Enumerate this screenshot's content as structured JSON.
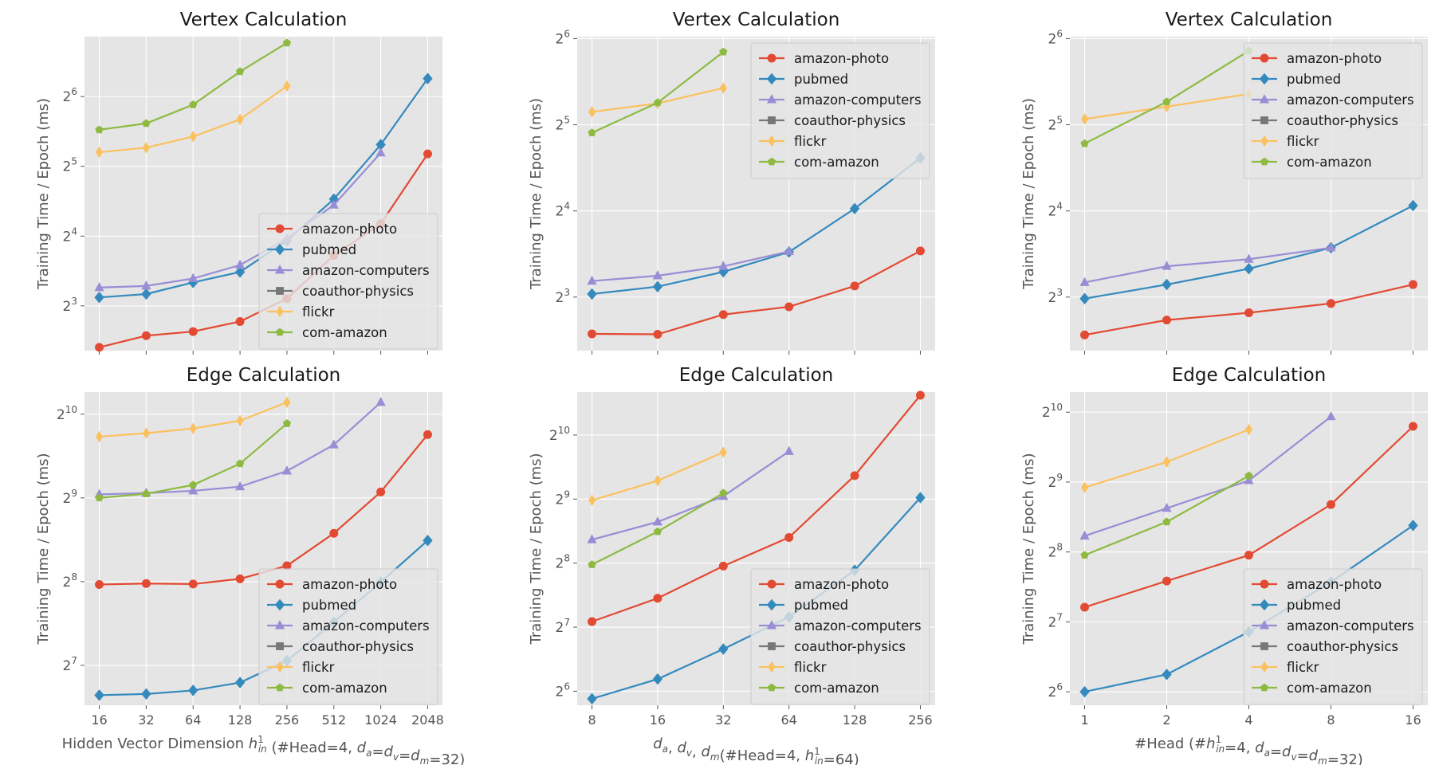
{
  "colors": {
    "amazon-photo": "#E24A33",
    "pubmed": "#348ABD",
    "amazon-computers": "#988ED5",
    "coauthor-physics": "#777777",
    "flickr": "#FBC15E",
    "com-amazon": "#8EBA42"
  },
  "chart_data": [
    {
      "type": "line",
      "title": "Vertex Calculation",
      "xlabel": "",
      "ylabel": "Training Time / Epoch (ms)",
      "x": [
        16,
        32,
        64,
        128,
        256,
        512,
        1024,
        2048
      ],
      "x_tick_labels": [],
      "x_scale": "log2",
      "y_scale": "log2",
      "y_ticks": [
        "2^3",
        "2^4",
        "2^5",
        "2^6"
      ],
      "ylim": [
        5.13,
        116
      ],
      "grid": true,
      "legend_position": "lower-right",
      "series": [
        {
          "name": "amazon-photo",
          "marker": "circle",
          "values": [
            5.3,
            5.95,
            6.2,
            6.85,
            8.6,
            13.2,
            18.1,
            36.2
          ]
        },
        {
          "name": "pubmed",
          "marker": "diamond",
          "values": [
            8.7,
            9.0,
            10.1,
            11.2,
            15.3,
            23.1,
            39.7,
            76.5
          ]
        },
        {
          "name": "amazon-computers",
          "marker": "triangle",
          "values": [
            9.6,
            9.75,
            10.5,
            12.0,
            15.6,
            21.8,
            36.6,
            null
          ]
        },
        {
          "name": "coauthor-physics",
          "marker": "square",
          "values": [
            null,
            null,
            null,
            null,
            null,
            null,
            null,
            null
          ]
        },
        {
          "name": "flickr",
          "marker": "thin-diamond",
          "values": [
            36.8,
            38.5,
            43.0,
            51.0,
            71.0,
            null,
            null,
            null
          ]
        },
        {
          "name": "com-amazon",
          "marker": "pentagon",
          "values": [
            46.0,
            49.0,
            59.0,
            82.0,
            109.0,
            null,
            null,
            null
          ]
        }
      ]
    },
    {
      "type": "line",
      "title": "Vertex Calculation",
      "xlabel": "",
      "ylabel": "Training Time / Epoch (ms)",
      "x": [
        8,
        16,
        32,
        64,
        128,
        256
      ],
      "x_tick_labels": [],
      "x_scale": "log2",
      "y_scale": "log2",
      "y_ticks": [
        "2^3",
        "2^4",
        "2^5",
        "2^6"
      ],
      "ylim": [
        5.2,
        65
      ],
      "grid": true,
      "legend_position": "upper-right",
      "series": [
        {
          "name": "amazon-photo",
          "marker": "circle",
          "values": [
            5.95,
            5.93,
            6.95,
            7.4,
            8.75,
            11.6
          ]
        },
        {
          "name": "pubmed",
          "marker": "diamond",
          "values": [
            8.2,
            8.7,
            9.8,
            11.5,
            16.3,
            24.5
          ]
        },
        {
          "name": "amazon-computers",
          "marker": "triangle",
          "values": [
            9.1,
            9.5,
            10.25,
            11.55,
            null,
            null
          ]
        },
        {
          "name": "coauthor-physics",
          "marker": "square",
          "values": [
            null,
            null,
            null,
            null,
            null,
            null
          ]
        },
        {
          "name": "flickr",
          "marker": "thin-diamond",
          "values": [
            35.5,
            38.0,
            43.0,
            null,
            null,
            null
          ]
        },
        {
          "name": "com-amazon",
          "marker": "pentagon",
          "values": [
            30.0,
            38.2,
            57.5,
            null,
            null,
            null
          ]
        }
      ]
    },
    {
      "type": "line",
      "title": "Vertex Calculation",
      "xlabel": "",
      "ylabel": "Training Time / Epoch (ms)",
      "x": [
        1,
        2,
        4,
        8,
        16
      ],
      "x_tick_labels": [],
      "x_scale": "log2",
      "y_scale": "log2",
      "y_ticks": [
        "2^3",
        "2^4",
        "2^5",
        "2^6"
      ],
      "ylim": [
        5.2,
        65
      ],
      "grid": true,
      "legend_position": "upper-right",
      "series": [
        {
          "name": "amazon-photo",
          "marker": "circle",
          "values": [
            5.9,
            6.65,
            7.05,
            7.6,
            8.85
          ]
        },
        {
          "name": "pubmed",
          "marker": "diamond",
          "values": [
            7.9,
            8.85,
            10.05,
            11.9,
            16.7
          ]
        },
        {
          "name": "amazon-computers",
          "marker": "triangle",
          "values": [
            9.0,
            10.25,
            10.85,
            11.9,
            null
          ]
        },
        {
          "name": "coauthor-physics",
          "marker": "square",
          "values": [
            null,
            null,
            null,
            null,
            null
          ]
        },
        {
          "name": "flickr",
          "marker": "thin-diamond",
          "values": [
            33.5,
            37.0,
            41.0,
            null,
            null
          ]
        },
        {
          "name": "com-amazon",
          "marker": "pentagon",
          "values": [
            27.5,
            38.5,
            58.0,
            null,
            null
          ]
        }
      ]
    },
    {
      "type": "line",
      "title": "Edge Calculation",
      "xlabel": "Hidden Vector Dimension h¹in (#Head=4, da=dv=dm=32)",
      "ylabel": "Training Time / Epoch (ms)",
      "x": [
        16,
        32,
        64,
        128,
        256,
        512,
        1024,
        2048
      ],
      "x_tick_labels": [
        "16",
        "32",
        "64",
        "128",
        "256",
        "512",
        "1024",
        "2048"
      ],
      "x_scale": "log2",
      "y_scale": "log2",
      "y_ticks": [
        "2^7",
        "2^8",
        "2^9",
        "2^10"
      ],
      "ylim": [
        92,
        1230
      ],
      "grid": true,
      "legend_position": "lower-right",
      "series": [
        {
          "name": "amazon-photo",
          "marker": "circle",
          "values": [
            250,
            252,
            251,
            262,
            292,
            382,
            538,
            865
          ]
        },
        {
          "name": "pubmed",
          "marker": "diamond",
          "values": [
            100,
            101,
            104,
            111,
            133,
            183,
            255,
            360
          ]
        },
        {
          "name": "amazon-computers",
          "marker": "triangle",
          "values": [
            527,
            533,
            543,
            562,
            640,
            795,
            1130,
            null
          ]
        },
        {
          "name": "coauthor-physics",
          "marker": "square",
          "values": [
            null,
            null,
            null,
            null,
            null,
            null,
            null,
            null
          ]
        },
        {
          "name": "flickr",
          "marker": "thin-diamond",
          "values": [
            850,
            875,
            910,
            970,
            1130,
            null,
            null,
            null
          ]
        },
        {
          "name": "com-amazon",
          "marker": "pentagon",
          "values": [
            512,
            530,
            570,
            680,
            948,
            null,
            null,
            null
          ]
        }
      ]
    },
    {
      "type": "line",
      "title": "Edge Calculation",
      "xlabel": "da, dv, dm(#Head=4, h¹in=64)",
      "ylabel": "Training Time / Epoch (ms)",
      "x": [
        8,
        16,
        32,
        64,
        128,
        256
      ],
      "x_tick_labels": [
        "8",
        "16",
        "32",
        "64",
        "128",
        "256"
      ],
      "x_scale": "log2",
      "y_scale": "log2",
      "y_ticks": [
        "2^6",
        "2^7",
        "2^8",
        "2^9",
        "2^10"
      ],
      "ylim": [
        55,
        1630
      ],
      "grid": true,
      "legend_position": "lower-right",
      "series": [
        {
          "name": "amazon-photo",
          "marker": "circle",
          "values": [
            136,
            175,
            248,
            338,
            660,
            1575
          ]
        },
        {
          "name": "pubmed",
          "marker": "diamond",
          "values": [
            59,
            73,
            101,
            143,
            237,
            520
          ]
        },
        {
          "name": "amazon-computers",
          "marker": "triangle",
          "values": [
            330,
            400,
            528,
            858,
            null,
            null
          ]
        },
        {
          "name": "coauthor-physics",
          "marker": "square",
          "values": [
            null,
            null,
            null,
            null,
            null,
            null
          ]
        },
        {
          "name": "flickr",
          "marker": "thin-diamond",
          "values": [
            505,
            625,
            850,
            null,
            null,
            null
          ]
        },
        {
          "name": "com-amazon",
          "marker": "pentagon",
          "values": [
            252,
            360,
            546,
            null,
            null,
            null
          ]
        }
      ]
    },
    {
      "type": "line",
      "title": "Edge Calculation",
      "xlabel": "#Head (#h¹in=4, da=dv=dm=32)",
      "ylabel": "Training Time / Epoch (ms)",
      "x": [
        1,
        2,
        4,
        8,
        16
      ],
      "x_tick_labels": [
        "1",
        "2",
        "4",
        "8",
        "16"
      ],
      "x_scale": "log2",
      "y_scale": "log2",
      "y_ticks": [
        "2^6",
        "2^7",
        "2^8",
        "2^9",
        "2^10"
      ],
      "ylim": [
        56,
        1250
      ],
      "grid": true,
      "legend_position": "lower-right",
      "series": [
        {
          "name": "amazon-photo",
          "marker": "circle",
          "values": [
            148,
            192,
            248,
            410,
            890
          ]
        },
        {
          "name": "pubmed",
          "marker": "diamond",
          "values": [
            64,
            76,
            116,
            190,
            333
          ]
        },
        {
          "name": "amazon-computers",
          "marker": "triangle",
          "values": [
            300,
            395,
            520,
            980,
            null
          ]
        },
        {
          "name": "coauthor-physics",
          "marker": "square",
          "values": [
            null,
            null,
            null,
            null,
            null
          ]
        },
        {
          "name": "flickr",
          "marker": "thin-diamond",
          "values": [
            485,
            625,
            862,
            null,
            null
          ]
        },
        {
          "name": "com-amazon",
          "marker": "pentagon",
          "values": [
            248,
            345,
            545,
            null,
            null
          ]
        }
      ]
    }
  ]
}
